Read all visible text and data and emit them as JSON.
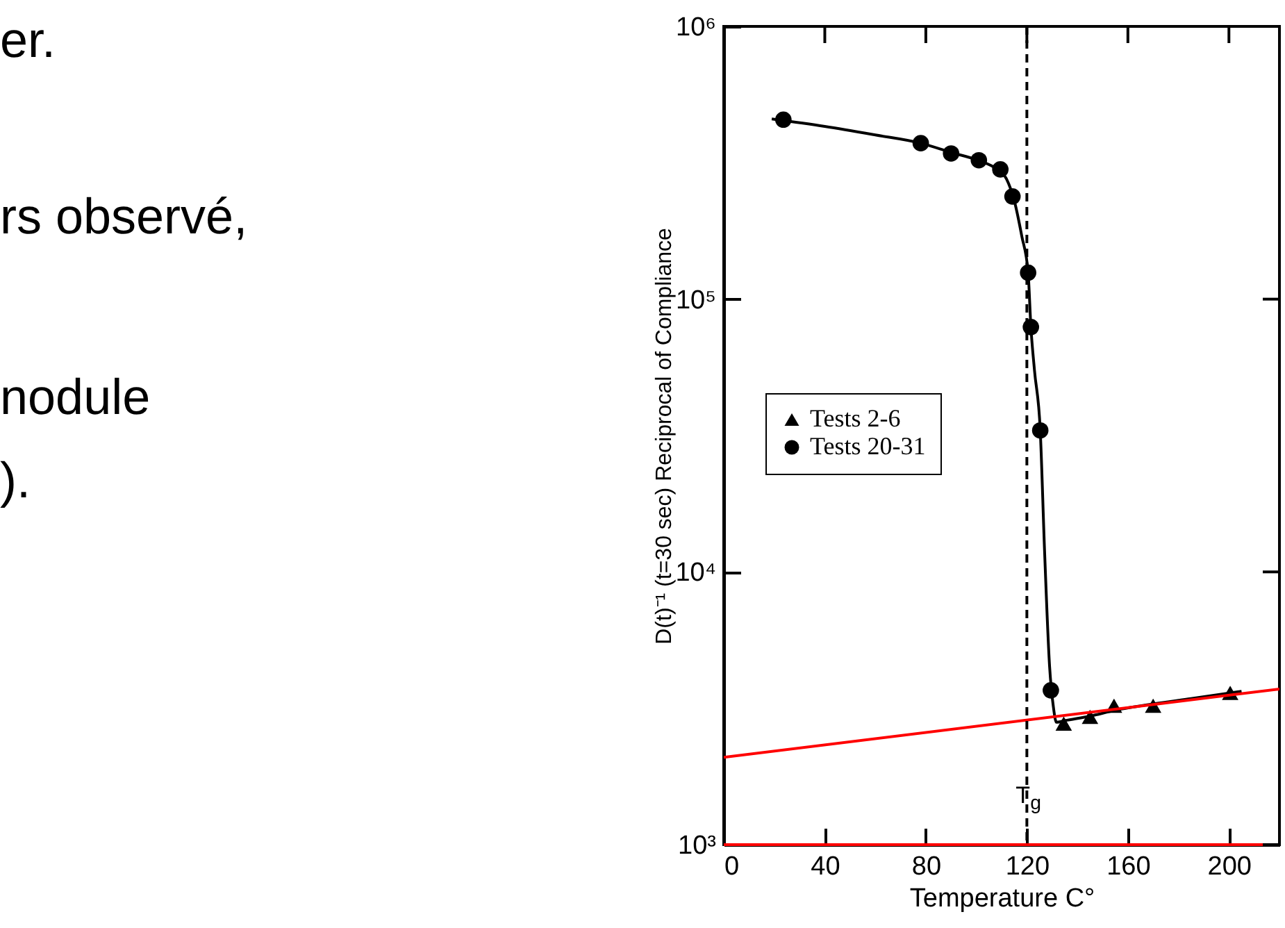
{
  "chart_data": {
    "type": "scatter",
    "xlabel": "Temperature C°",
    "ylabel": "D(t)⁻¹ (t=30 sec) Reciprocal of Compliance",
    "log": "y",
    "xlim": [
      0,
      220
    ],
    "xticks": [
      0,
      40,
      80,
      120,
      160,
      200
    ],
    "ylim": [
      1000,
      1000000
    ],
    "yticks": [
      {
        "value": 1000,
        "label": "10³"
      },
      {
        "value": 10000,
        "label": "10⁴"
      },
      {
        "value": 100000,
        "label": "10⁵"
      },
      {
        "value": 1000000,
        "label": "10⁶"
      }
    ],
    "legend": "left",
    "series": [
      {
        "name": "Tests 2-6",
        "color": "#000000",
        "marker": "triangle",
        "x": [
          134.6,
          145,
          154.5,
          170,
          200.5
        ],
        "values": [
          2780,
          2940,
          3230,
          3230,
          3600
        ]
      },
      {
        "name": "Tests 20-31",
        "color": "#000000",
        "marker": "circle",
        "x": [
          23.6,
          78,
          90,
          101,
          109.5,
          114.3,
          120.5,
          121.6,
          125.3,
          129.5
        ],
        "values": [
          455000,
          373000,
          342000,
          323000,
          299000,
          238000,
          125000,
          79000,
          33000,
          3680
        ]
      },
      {
        "type": "line",
        "color": "#000000",
        "x": [
          19,
          40,
          60,
          78,
          90,
          101,
          108,
          112,
          115,
          118,
          120.5,
          121.6,
          123,
          125.3,
          127,
          129,
          130.5,
          131.7,
          135,
          145,
          155,
          170,
          185,
          205
        ],
        "values": [
          458000,
          430000,
          400000,
          373000,
          345000,
          322000,
          300000,
          275000,
          230000,
          170000,
          125000,
          79000,
          55000,
          33000,
          12000,
          4500,
          3200,
          2810,
          2850,
          2960,
          3110,
          3280,
          3430,
          3650
        ]
      },
      {
        "type": "line",
        "color": "#ff0000",
        "x": [
          0,
          220
        ],
        "values": [
          2090,
          3720
        ]
      }
    ],
    "ref_lines": [
      {
        "axis": "x",
        "value": 120,
        "label": "T$_{g}$",
        "color": "#000000",
        "line_style": "dashed"
      },
      {
        "axis": "y",
        "value": 1000,
        "color": "#ff0000",
        "line_style": "solid"
      }
    ],
    "annotations": [
      "er.",
      "rs observé,",
      "nodule",
      ")."
    ]
  }
}
